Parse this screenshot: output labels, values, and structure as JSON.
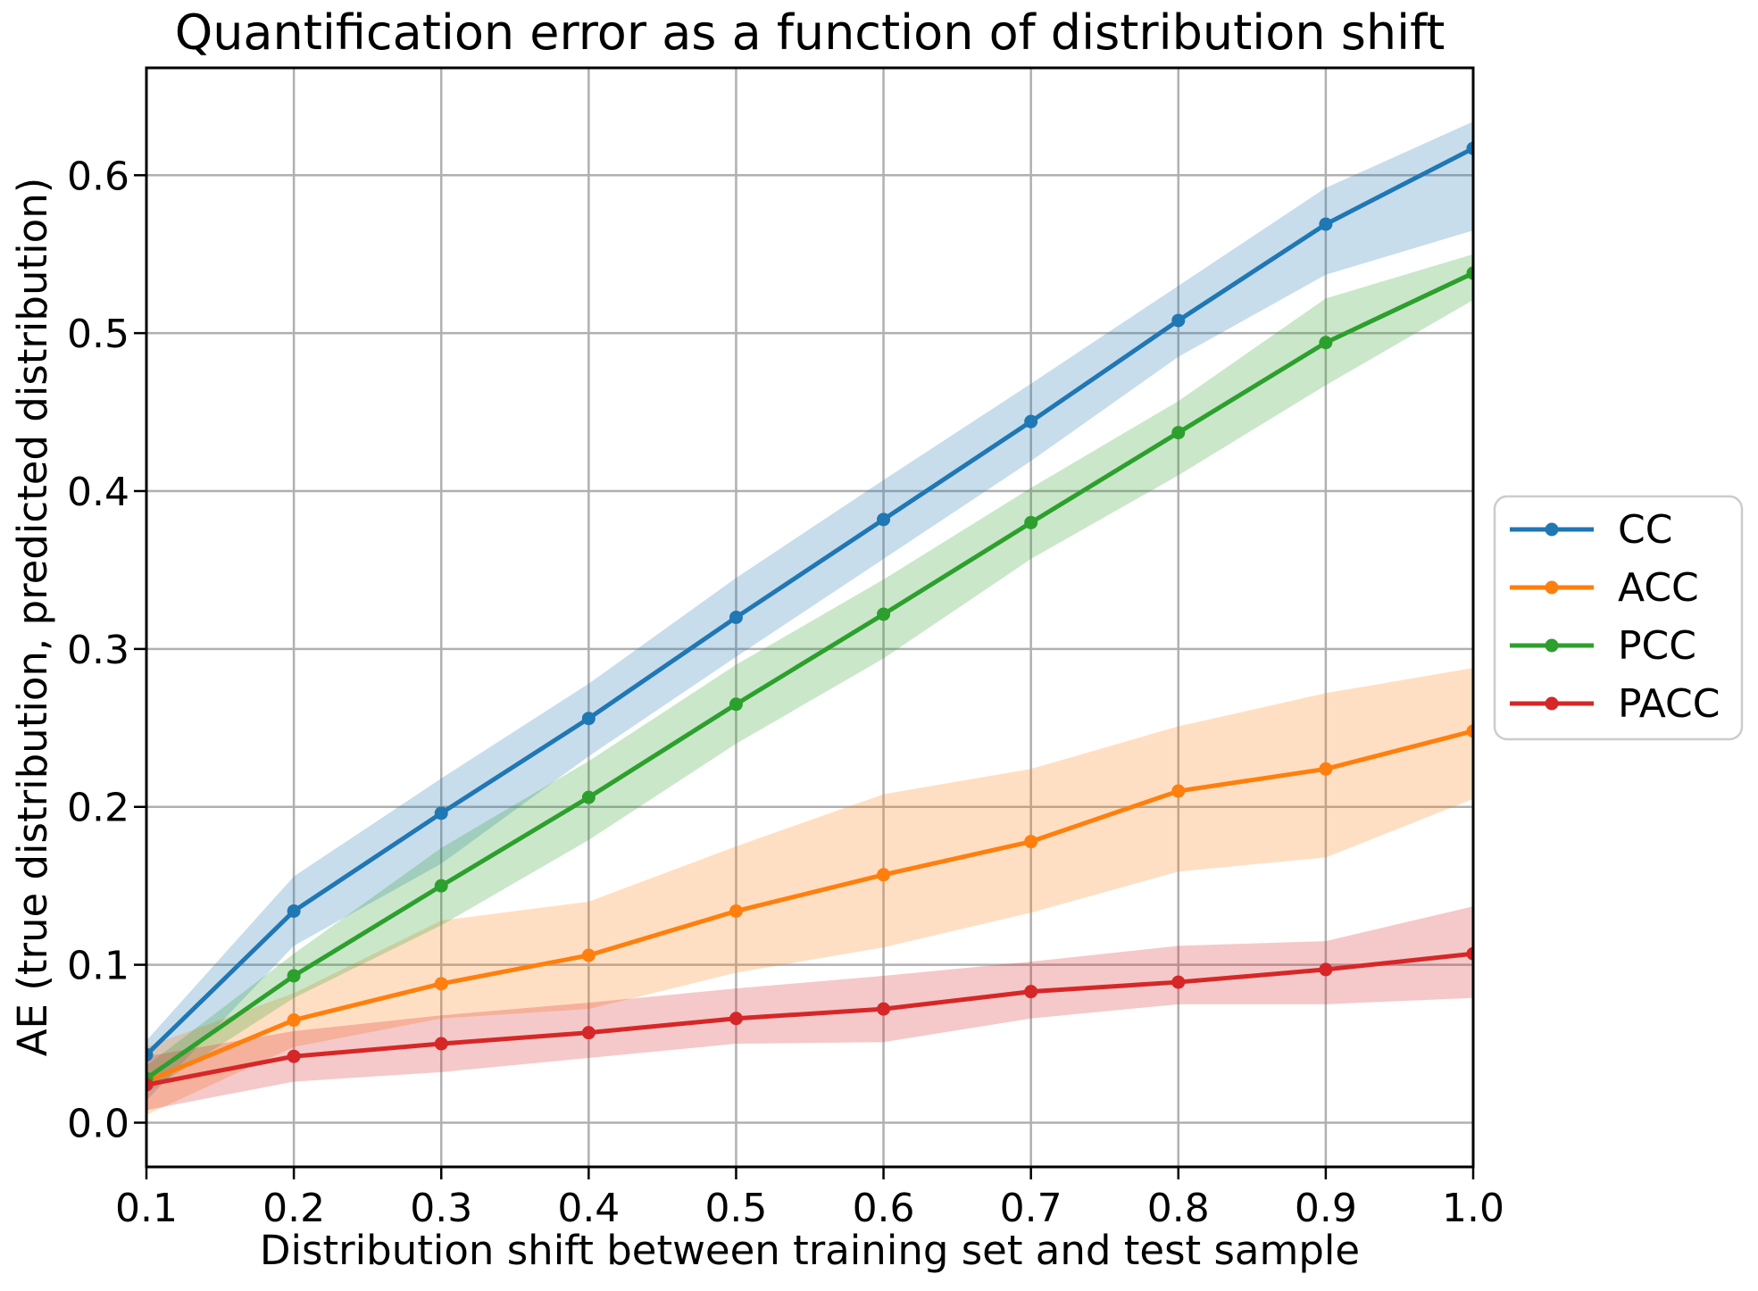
{
  "chart_data": {
    "type": "line",
    "title": "Quantification error as a function of distribution shift",
    "xlabel": "Distribution shift between training set and test sample",
    "ylabel": "AE (true distribution, predicted distribution)",
    "x": [
      0.1,
      0.2,
      0.3,
      0.4,
      0.5,
      0.6,
      0.7,
      0.8,
      0.9,
      1.0
    ],
    "series": [
      {
        "name": "CC",
        "color": "#1f77b4",
        "values": [
          0.043,
          0.134,
          0.196,
          0.256,
          0.32,
          0.382,
          0.444,
          0.508,
          0.569,
          0.617
        ],
        "band_lower": [
          0.014,
          0.112,
          0.164,
          0.232,
          0.295,
          0.357,
          0.419,
          0.485,
          0.537,
          0.565
        ],
        "band_upper": [
          0.052,
          0.156,
          0.218,
          0.278,
          0.345,
          0.407,
          0.468,
          0.53,
          0.592,
          0.634
        ]
      },
      {
        "name": "ACC",
        "color": "#ff7f0e",
        "values": [
          0.026,
          0.065,
          0.088,
          0.106,
          0.134,
          0.157,
          0.178,
          0.21,
          0.224,
          0.248
        ],
        "band_lower": [
          0.005,
          0.048,
          0.066,
          0.072,
          0.095,
          0.111,
          0.133,
          0.159,
          0.168,
          0.205
        ],
        "band_upper": [
          0.048,
          0.082,
          0.128,
          0.14,
          0.175,
          0.208,
          0.224,
          0.251,
          0.272,
          0.288
        ]
      },
      {
        "name": "PCC",
        "color": "#2ca02c",
        "values": [
          0.028,
          0.093,
          0.15,
          0.206,
          0.265,
          0.322,
          0.38,
          0.437,
          0.494,
          0.538
        ],
        "band_lower": [
          0.019,
          0.079,
          0.125,
          0.179,
          0.24,
          0.294,
          0.357,
          0.41,
          0.467,
          0.521
        ],
        "band_upper": [
          0.036,
          0.107,
          0.174,
          0.229,
          0.29,
          0.344,
          0.402,
          0.457,
          0.522,
          0.55
        ]
      },
      {
        "name": "PACC",
        "color": "#d62728",
        "values": [
          0.024,
          0.042,
          0.05,
          0.057,
          0.066,
          0.072,
          0.083,
          0.089,
          0.097,
          0.107
        ],
        "band_lower": [
          0.008,
          0.026,
          0.032,
          0.041,
          0.05,
          0.051,
          0.066,
          0.075,
          0.075,
          0.079
        ],
        "band_upper": [
          0.042,
          0.058,
          0.068,
          0.076,
          0.085,
          0.093,
          0.102,
          0.112,
          0.115,
          0.137
        ]
      }
    ],
    "x_ticks": [
      {
        "value": 0.1,
        "label": "0.1"
      },
      {
        "value": 0.2,
        "label": "0.2"
      },
      {
        "value": 0.3,
        "label": "0.3"
      },
      {
        "value": 0.4,
        "label": "0.4"
      },
      {
        "value": 0.5,
        "label": "0.5"
      },
      {
        "value": 0.6,
        "label": "0.6"
      },
      {
        "value": 0.7,
        "label": "0.7"
      },
      {
        "value": 0.8,
        "label": "0.8"
      },
      {
        "value": 0.9,
        "label": "0.9"
      },
      {
        "value": 1.0,
        "label": "1.0"
      }
    ],
    "y_ticks": [
      {
        "value": 0.0,
        "label": "0.0"
      },
      {
        "value": 0.1,
        "label": "0.1"
      },
      {
        "value": 0.2,
        "label": "0.2"
      },
      {
        "value": 0.3,
        "label": "0.3"
      },
      {
        "value": 0.4,
        "label": "0.4"
      },
      {
        "value": 0.5,
        "label": "0.5"
      },
      {
        "value": 0.6,
        "label": "0.6"
      }
    ],
    "xlim": [
      0.1,
      1.0
    ],
    "ylim": [
      -0.028,
      0.668
    ],
    "grid": true,
    "grid_color": "#b0b0b0",
    "band_opacity": 0.25,
    "background": "#ffffff",
    "text_color": "#000000",
    "legend": {
      "position": "right-outside",
      "entries": [
        "CC",
        "ACC",
        "PCC",
        "PACC"
      ],
      "border_color": "#cccccc"
    }
  }
}
